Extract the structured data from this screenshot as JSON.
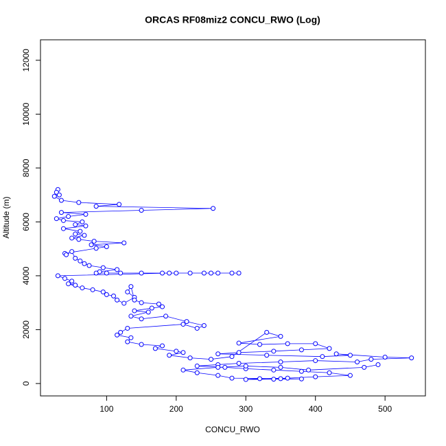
{
  "chart_data": {
    "type": "scatter",
    "title": "ORCAS RF08miz2 CONCU_RWO (Log)",
    "x_label": "CONCU_RWO",
    "y_label": "Altitude (m)",
    "color": "#0000ff",
    "x": [
      30,
      28,
      32,
      25,
      35,
      60,
      118,
      85,
      253,
      150,
      35,
      70,
      45,
      28,
      38,
      65,
      55,
      70,
      38,
      62,
      55,
      68,
      50,
      60,
      82,
      125,
      78,
      100,
      85,
      40,
      42,
      50,
      55,
      62,
      68,
      75,
      95,
      115,
      90,
      85,
      100,
      120,
      150,
      180,
      200,
      220,
      240,
      260,
      280,
      290,
      250,
      190,
      30,
      40,
      50,
      55,
      45,
      65,
      80,
      95,
      100,
      110,
      115,
      125,
      140,
      130,
      135,
      140,
      150,
      175,
      180,
      165,
      140,
      160,
      135,
      150,
      185,
      215,
      240,
      230,
      210,
      130,
      120,
      115,
      135,
      130,
      150,
      180,
      170,
      200,
      210,
      190,
      220,
      250,
      280,
      330,
      350,
      290,
      320,
      360,
      400,
      420,
      380,
      340,
      290,
      260,
      330,
      410,
      450,
      430,
      500,
      538,
      480,
      460,
      400,
      350,
      290,
      260,
      230,
      270,
      300,
      340,
      380,
      420,
      450,
      400,
      360,
      320,
      300,
      340,
      380,
      350,
      280,
      260,
      230,
      210,
      260,
      300,
      350,
      390,
      470,
      490
    ],
    "values": [
      7200,
      7100,
      7000,
      6950,
      6800,
      6720,
      6650,
      6580,
      6500,
      6430,
      6350,
      6280,
      6200,
      6120,
      6050,
      6000,
      5900,
      5850,
      5750,
      5650,
      5550,
      5500,
      5400,
      5350,
      5280,
      5220,
      5150,
      5080,
      5020,
      4830,
      4780,
      4900,
      4650,
      4550,
      4450,
      4380,
      4300,
      4230,
      4150,
      4100,
      4100,
      4100,
      4100,
      4100,
      4100,
      4100,
      4100,
      4100,
      4100,
      4100,
      4100,
      4100,
      4000,
      3900,
      3800,
      3650,
      3700,
      3550,
      3480,
      3400,
      3300,
      3250,
      3100,
      2980,
      3200,
      3400,
      3600,
      3100,
      3000,
      2950,
      2850,
      2800,
      2700,
      2650,
      2500,
      2400,
      2500,
      2300,
      2150,
      2050,
      2200,
      2050,
      1900,
      1800,
      1700,
      1550,
      1450,
      1400,
      1300,
      1200,
      1150,
      1050,
      950,
      900,
      1000,
      1900,
      1750,
      1500,
      1450,
      1480,
      1480,
      1300,
      1250,
      1200,
      1150,
      1100,
      1050,
      1000,
      1050,
      1100,
      980,
      950,
      900,
      800,
      850,
      800,
      750,
      700,
      650,
      600,
      550,
      500,
      450,
      400,
      300,
      250,
      200,
      180,
      150,
      160,
      170,
      180,
      200,
      300,
      400,
      500,
      600,
      650,
      600,
      500,
      600,
      700
    ],
    "xlim": [
      5,
      558
    ],
    "ylim": [
      -460,
      12760
    ],
    "xticks": [
      100,
      200,
      300,
      400,
      500
    ],
    "yticks": [
      0,
      2000,
      4000,
      6000,
      8000,
      10000,
      12000
    ]
  }
}
